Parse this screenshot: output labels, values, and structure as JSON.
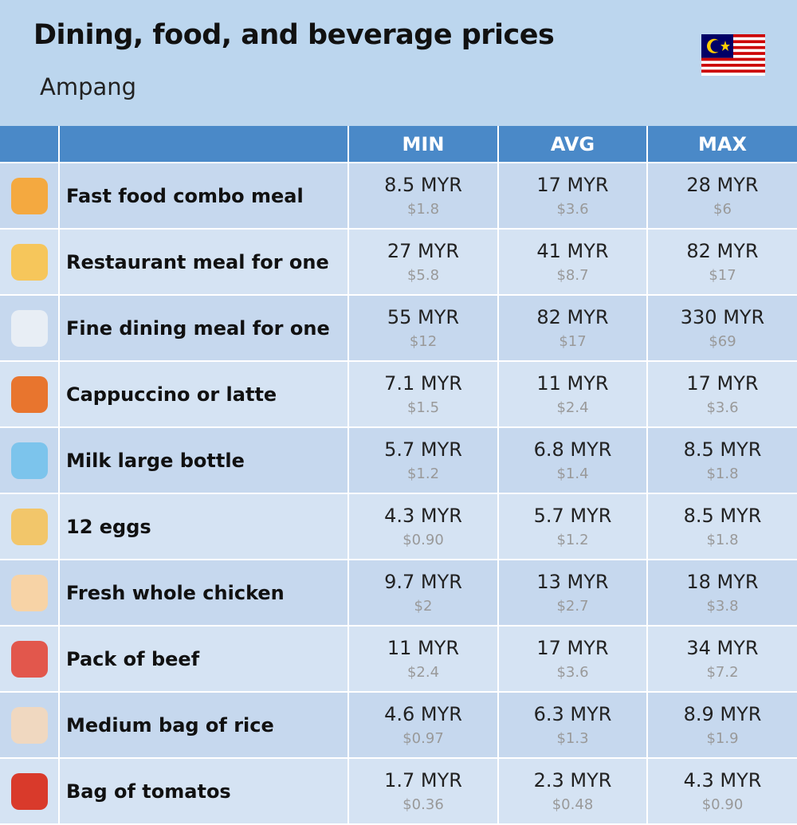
{
  "header": {
    "title": "Dining, food, and beverage prices",
    "subtitle": "Ampang"
  },
  "table": {
    "columns": [
      "MIN",
      "AVG",
      "MAX"
    ],
    "rows": [
      {
        "label": "Fast food combo meal",
        "cells": [
          {
            "local": "8.5 MYR",
            "usd": "$1.8"
          },
          {
            "local": "17 MYR",
            "usd": "$3.6"
          },
          {
            "local": "28 MYR",
            "usd": "$6"
          }
        ]
      },
      {
        "label": "Restaurant meal for one",
        "cells": [
          {
            "local": "27 MYR",
            "usd": "$5.8"
          },
          {
            "local": "41 MYR",
            "usd": "$8.7"
          },
          {
            "local": "82 MYR",
            "usd": "$17"
          }
        ]
      },
      {
        "label": "Fine dining meal for one",
        "cells": [
          {
            "local": "55 MYR",
            "usd": "$12"
          },
          {
            "local": "82 MYR",
            "usd": "$17"
          },
          {
            "local": "330 MYR",
            "usd": "$69"
          }
        ]
      },
      {
        "label": "Cappuccino or latte",
        "cells": [
          {
            "local": "7.1 MYR",
            "usd": "$1.5"
          },
          {
            "local": "11 MYR",
            "usd": "$2.4"
          },
          {
            "local": "17 MYR",
            "usd": "$3.6"
          }
        ]
      },
      {
        "label": "Milk large bottle",
        "cells": [
          {
            "local": "5.7 MYR",
            "usd": "$1.2"
          },
          {
            "local": "6.8 MYR",
            "usd": "$1.4"
          },
          {
            "local": "8.5 MYR",
            "usd": "$1.8"
          }
        ]
      },
      {
        "label": "12 eggs",
        "cells": [
          {
            "local": "4.3 MYR",
            "usd": "$0.90"
          },
          {
            "local": "5.7 MYR",
            "usd": "$1.2"
          },
          {
            "local": "8.5 MYR",
            "usd": "$1.8"
          }
        ]
      },
      {
        "label": "Fresh whole chicken",
        "cells": [
          {
            "local": "9.7 MYR",
            "usd": "$2"
          },
          {
            "local": "13 MYR",
            "usd": "$2.7"
          },
          {
            "local": "18 MYR",
            "usd": "$3.8"
          }
        ]
      },
      {
        "label": "Pack of beef",
        "cells": [
          {
            "local": "11 MYR",
            "usd": "$2.4"
          },
          {
            "local": "17 MYR",
            "usd": "$3.6"
          },
          {
            "local": "34 MYR",
            "usd": "$7.2"
          }
        ]
      },
      {
        "label": "Medium bag of rice",
        "cells": [
          {
            "local": "4.6 MYR",
            "usd": "$0.97"
          },
          {
            "local": "6.3 MYR",
            "usd": "$1.3"
          },
          {
            "local": "8.9 MYR",
            "usd": "$1.9"
          }
        ]
      },
      {
        "label": "Bag of tomatos",
        "cells": [
          {
            "local": "1.7 MYR",
            "usd": "$0.36"
          },
          {
            "local": "2.3 MYR",
            "usd": "$0.48"
          },
          {
            "local": "4.3 MYR",
            "usd": "$0.90"
          }
        ]
      }
    ]
  }
}
